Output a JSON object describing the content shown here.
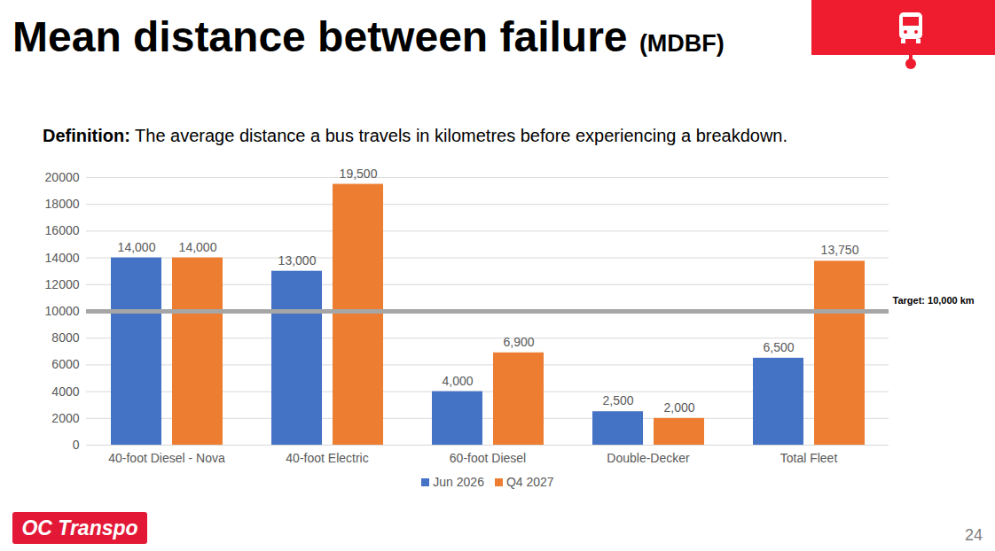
{
  "chart_data": {
    "type": "bar",
    "title": "Mean distance between failure",
    "title_abbreviation": "(MDBF)",
    "definition_label": "Definition:",
    "definition_text": "The average distance a bus travels in kilometres before experiencing a breakdown.",
    "categories": [
      "40-foot Diesel - Nova",
      "40-foot Electric",
      "60-foot Diesel",
      "Double-Decker",
      "Total Fleet"
    ],
    "series": [
      {
        "name": "Jun 2026",
        "color": "#4472c4",
        "values": [
          14000,
          13000,
          4000,
          2500,
          6500
        ],
        "value_labels": [
          "14,000",
          "13,000",
          "4,000",
          "2,500",
          "6,500"
        ]
      },
      {
        "name": "Q4 2027",
        "color": "#ed7d31",
        "values": [
          14000,
          19500,
          6900,
          2000,
          13750
        ],
        "value_labels": [
          "14,000",
          "19,500",
          "6,900",
          "2,000",
          "13,750"
        ]
      }
    ],
    "ylim": [
      0,
      20000
    ],
    "yticks": [
      0,
      2000,
      4000,
      6000,
      8000,
      10000,
      12000,
      14000,
      16000,
      18000,
      20000
    ],
    "grid": true,
    "legend": "bottom",
    "data_labels": true,
    "annotations": [
      {
        "value": 10000,
        "label": "Target: 10,000 km"
      }
    ],
    "footer_logo": "OC Transpo",
    "page_number": "24"
  }
}
